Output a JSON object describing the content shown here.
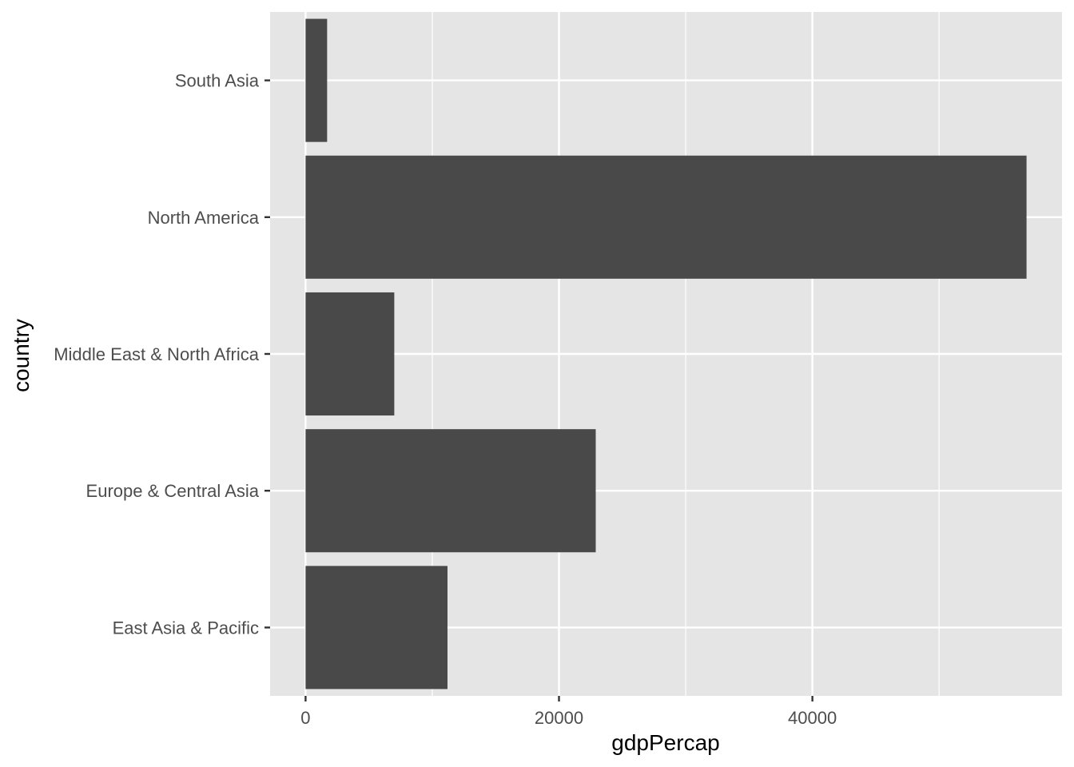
{
  "chart_data": {
    "type": "bar",
    "orientation": "horizontal",
    "categories": [
      "East Asia & Pacific",
      "Europe & Central Asia",
      "Middle East & North Africa",
      "North America",
      "South Asia"
    ],
    "values": [
      11200,
      22900,
      7000,
      56900,
      1700
    ],
    "xlabel": "gdpPercap",
    "ylabel": "country",
    "xlim": [
      -2800,
      59700
    ],
    "x_ticks": [
      0,
      20000,
      40000
    ],
    "x_tick_labels": [
      "0",
      "20000",
      "40000"
    ],
    "grid": true,
    "bar_color": "#494949",
    "panel_color": "#e5e5e5",
    "grid_color": "#ffffff"
  }
}
